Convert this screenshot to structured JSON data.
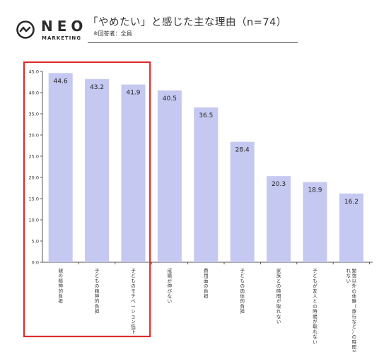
{
  "header": {
    "logo_text": "NEO",
    "logo_sub": "MARKETING",
    "title": "「やめたい」と感じた主な理由（n=74）",
    "subtitle": "※回答者：全員"
  },
  "chart_data": {
    "type": "bar",
    "categories": [
      "親の精神的負担",
      "子どもの精神的負担",
      "子どものモチベーション低下",
      "成績が伸びない",
      "費用面の負担",
      "子どもの肉体的負担",
      "家族との時間が取れない",
      "子どもが友人との時間が取れない",
      "勉強以外の体験（旅行など）の時間が取れない"
    ],
    "values": [
      44.6,
      43.2,
      41.9,
      40.5,
      36.5,
      28.4,
      20.3,
      18.9,
      16.2
    ],
    "value_labels": [
      "44.6",
      "43.2",
      "41.9",
      "40.5",
      "36.5",
      "28.4",
      "20.3",
      "18.9",
      "16.2"
    ],
    "yticks": [
      "45.0",
      "40.0",
      "35.0",
      "30.0",
      "25.0",
      "20.0",
      "15.0",
      "10.0",
      "5.0",
      "0.0"
    ],
    "ylim": [
      0,
      45
    ],
    "title": "「やめたい」と感じた主な理由（n=74）",
    "xlabel": "",
    "ylabel": "",
    "grid": false,
    "bar_color": "#c5c8f0",
    "highlight": {
      "categories": [
        0,
        1,
        2
      ],
      "color": "#e02a2a"
    }
  }
}
